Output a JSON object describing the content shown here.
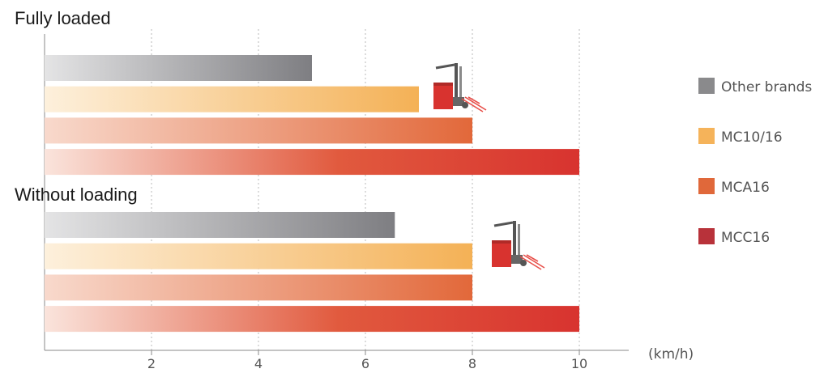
{
  "chart_data": {
    "type": "bar",
    "orientation": "horizontal",
    "x_unit": "(km/h)",
    "x_ticks": [
      2,
      4,
      6,
      8,
      10
    ],
    "xlim": [
      0,
      11
    ],
    "grid": true,
    "legend_position": "right",
    "groups": [
      {
        "title": "Fully loaded",
        "values": [
          5,
          7,
          8,
          10
        ]
      },
      {
        "title": "Without loading",
        "values": [
          6.55,
          8,
          8,
          10
        ]
      }
    ],
    "series": [
      {
        "name": "Other brands",
        "color": "#8a8a8c"
      },
      {
        "name": "MC10/16",
        "color": "#f5b35a"
      },
      {
        "name": "MCA16",
        "color": "#e0683a"
      },
      {
        "name": "MCC16",
        "color": "#b8323a"
      }
    ]
  },
  "icons": {
    "forklift": "forklift-icon"
  }
}
